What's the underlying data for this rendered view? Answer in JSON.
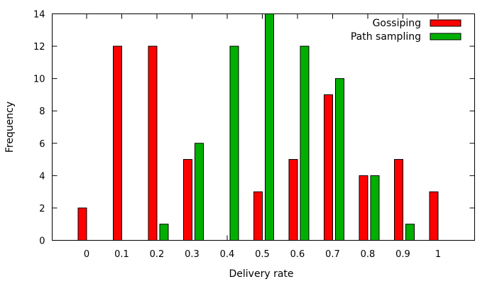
{
  "chart_data": {
    "type": "bar",
    "title": "",
    "xlabel": "Delivery rate",
    "ylabel": "Frequency",
    "categories": [
      "0",
      "0.1",
      "0.2",
      "0.3",
      "0.4",
      "0.5",
      "0.6",
      "0.7",
      "0.8",
      "0.9",
      "1"
    ],
    "yticks": [
      "0",
      "2",
      "4",
      "6",
      "8",
      "10",
      "12",
      "14"
    ],
    "ylim": [
      0,
      14
    ],
    "grid": false,
    "legend_position": "top-right",
    "series": [
      {
        "name": "Gossiping",
        "color": "#ff0000",
        "values": [
          2,
          12,
          12,
          5,
          0,
          3,
          5,
          9,
          4,
          5,
          3
        ]
      },
      {
        "name": "Path sampling",
        "color": "#00b000",
        "values": [
          0,
          0,
          1,
          6,
          12,
          14,
          12,
          10,
          4,
          1,
          0
        ]
      }
    ]
  }
}
